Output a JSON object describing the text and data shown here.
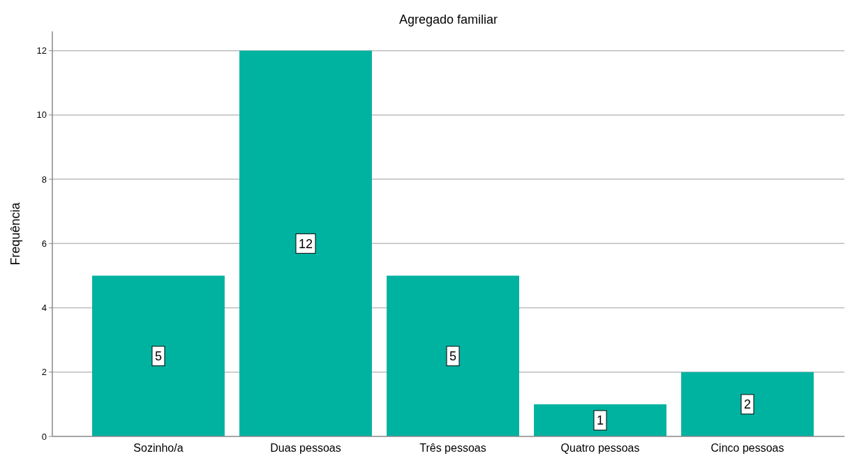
{
  "chart_data": {
    "type": "bar",
    "title": "Agregado familiar",
    "ylabel": "Frequência",
    "categories": [
      "Sozinho/a",
      "Duas pessoas",
      "Três pessoas",
      "Quatro pessoas",
      "Cinco pessoas"
    ],
    "values": [
      5,
      12,
      5,
      1,
      2
    ],
    "color": "#00b2a0",
    "ylim": [
      0,
      12.6
    ],
    "yticks": [
      0,
      2,
      4,
      6,
      8,
      10,
      12
    ],
    "grid": "y",
    "data_labels": true
  }
}
